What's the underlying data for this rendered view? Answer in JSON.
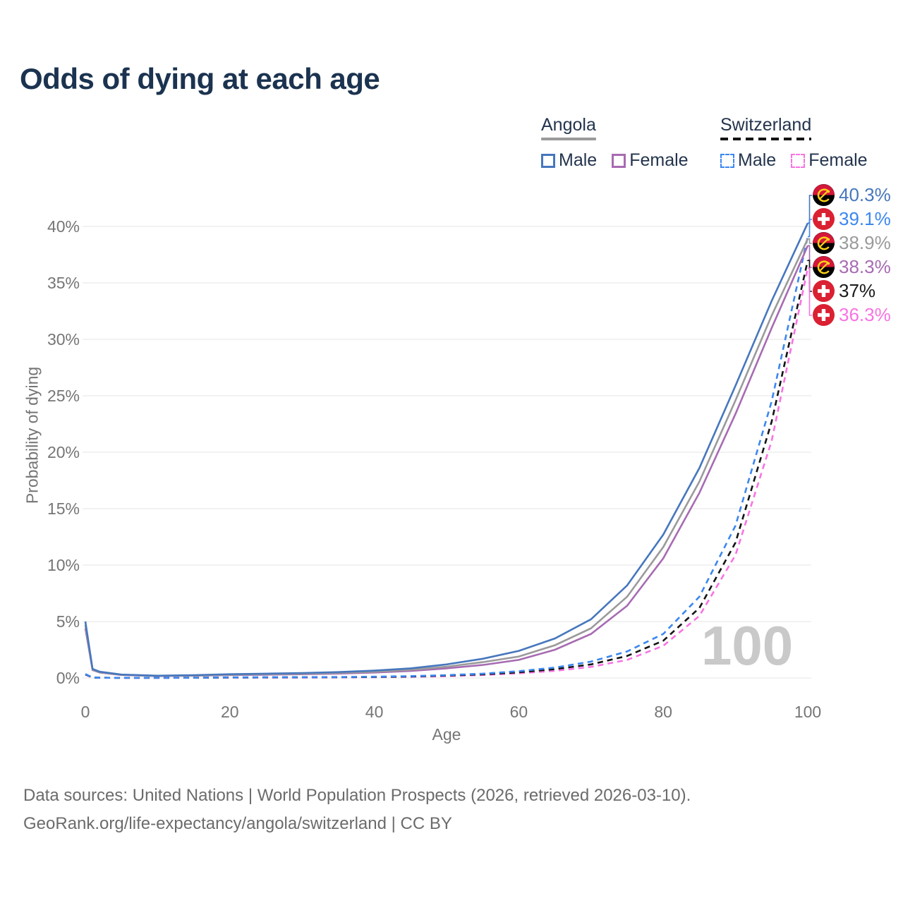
{
  "title": "Odds of dying at each age",
  "watermark": "100",
  "legend": {
    "groups": [
      {
        "country": "Angola",
        "line_color": "#9a9a9a",
        "dash": "solid",
        "items": [
          {
            "label": "Male",
            "color": "#4677bd"
          },
          {
            "label": "Female",
            "color": "#a76bb2"
          }
        ]
      },
      {
        "country": "Switzerland",
        "line_color": "#141414",
        "dash": "dashed",
        "items": [
          {
            "label": "Male",
            "color": "#3c87f0"
          },
          {
            "label": "Female",
            "color": "#f873e3"
          }
        ]
      }
    ]
  },
  "end_labels": [
    {
      "series": "Angola Male",
      "flag": "angola",
      "label": "40.3%",
      "value": 40.3,
      "color": "#4677bd"
    },
    {
      "series": "Switzerland Male",
      "flag": "switzerland",
      "label": "39.1%",
      "value": 39.1,
      "color": "#3c87f0"
    },
    {
      "series": "Angola Both sexes",
      "flag": "angola",
      "label": "38.9%",
      "value": 38.9,
      "color": "#9a9a9a"
    },
    {
      "series": "Angola Female",
      "flag": "angola",
      "label": "38.3%",
      "value": 38.3,
      "color": "#a76bb2"
    },
    {
      "series": "Switzerland Both sexes",
      "flag": "switzerland",
      "label": "37%",
      "value": 37.0,
      "color": "#1a1a1a"
    },
    {
      "series": "Switzerland Female",
      "flag": "switzerland",
      "label": "36.3%",
      "value": 36.3,
      "color": "#f873e3"
    }
  ],
  "footer": {
    "line1": "Data sources: United Nations | World Population Prospects (2026, retrieved 2026-03-10).",
    "line2": "GeoRank.org/life-expectancy/angola/switzerland | CC BY"
  },
  "chart_data": {
    "type": "line",
    "title": "Odds of dying at each age",
    "xlabel": "Age",
    "ylabel": "Probability of dying",
    "xlim": [
      0,
      100
    ],
    "ylim": [
      0,
      43
    ],
    "grid": "horizontal",
    "legend_position": "top-right",
    "x_ticks": [
      0,
      20,
      40,
      60,
      80,
      100
    ],
    "y_ticks": [
      0,
      5,
      10,
      15,
      20,
      25,
      30,
      35,
      40
    ],
    "y_tick_labels": [
      "0%",
      "5%",
      "10%",
      "15%",
      "20%",
      "25%",
      "30%",
      "35%",
      "40%"
    ],
    "x": [
      0,
      1,
      2,
      5,
      10,
      15,
      20,
      25,
      30,
      35,
      40,
      45,
      50,
      55,
      60,
      65,
      70,
      75,
      80,
      85,
      90,
      95,
      100
    ],
    "series": [
      {
        "name": "Angola Male",
        "color": "#4677bd",
        "dash": "solid",
        "values": [
          5.0,
          0.8,
          0.55,
          0.3,
          0.2,
          0.25,
          0.33,
          0.38,
          0.44,
          0.52,
          0.65,
          0.85,
          1.2,
          1.7,
          2.4,
          3.5,
          5.2,
          8.2,
          12.7,
          18.6,
          25.9,
          33.4,
          40.3
        ]
      },
      {
        "name": "Angola Both sexes",
        "color": "#9a9a9a",
        "dash": "solid",
        "values": [
          4.7,
          0.75,
          0.5,
          0.28,
          0.18,
          0.22,
          0.28,
          0.33,
          0.38,
          0.45,
          0.55,
          0.72,
          1.0,
          1.4,
          1.9,
          2.9,
          4.4,
          7.2,
          11.6,
          17.4,
          24.6,
          32.1,
          38.9
        ]
      },
      {
        "name": "Angola Female",
        "color": "#a76bb2",
        "dash": "solid",
        "values": [
          4.4,
          0.7,
          0.48,
          0.26,
          0.17,
          0.2,
          0.25,
          0.29,
          0.33,
          0.39,
          0.48,
          0.62,
          0.85,
          1.15,
          1.6,
          2.5,
          3.9,
          6.4,
          10.6,
          16.4,
          23.4,
          31.0,
          38.3
        ]
      },
      {
        "name": "Switzerland Male",
        "color": "#3c87f0",
        "dash": "dashed",
        "values": [
          0.35,
          0.04,
          0.02,
          0.01,
          0.01,
          0.02,
          0.05,
          0.06,
          0.07,
          0.08,
          0.11,
          0.16,
          0.25,
          0.38,
          0.6,
          0.92,
          1.45,
          2.35,
          3.9,
          7.2,
          13.5,
          24.5,
          39.1
        ]
      },
      {
        "name": "Switzerland Both sexes",
        "color": "#141414",
        "dash": "dashed",
        "values": [
          0.32,
          0.03,
          0.02,
          0.01,
          0.01,
          0.02,
          0.04,
          0.05,
          0.06,
          0.07,
          0.09,
          0.13,
          0.21,
          0.32,
          0.5,
          0.78,
          1.2,
          1.95,
          3.3,
          6.2,
          12.0,
          22.7,
          37.0
        ]
      },
      {
        "name": "Switzerland Female",
        "color": "#f873e3",
        "dash": "dashed",
        "values": [
          0.3,
          0.03,
          0.02,
          0.01,
          0.01,
          0.01,
          0.03,
          0.04,
          0.04,
          0.05,
          0.07,
          0.1,
          0.16,
          0.26,
          0.41,
          0.63,
          0.98,
          1.6,
          2.85,
          5.5,
          10.9,
          21.0,
          36.3
        ]
      }
    ]
  }
}
